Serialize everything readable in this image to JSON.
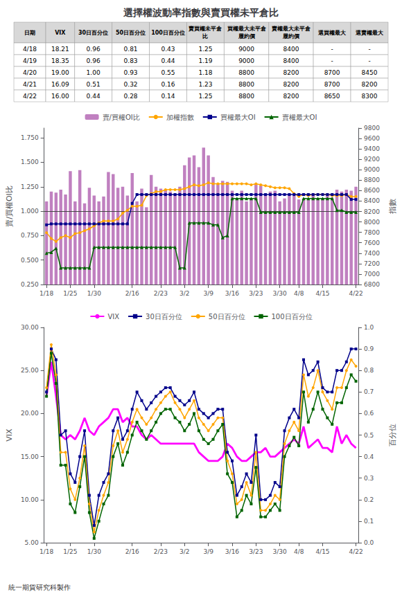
{
  "chart_data": [
    {
      "type": "table",
      "title": "選擇權波動率指數與賣買權未平倉比",
      "columns": [
        "日期",
        "VIX",
        "30日百分位",
        "50日百分位",
        "100日百分位",
        "賣買權未平倉比",
        "買權最大未平倉履約價",
        "賣權最大未平倉履約價",
        "選買權最大",
        "選賣權最大"
      ],
      "rows": [
        [
          "4/18",
          "18.21",
          "0.96",
          "0.81",
          "0.43",
          "1.25",
          "9000",
          "8400",
          "-",
          "-"
        ],
        [
          "4/19",
          "18.35",
          "0.96",
          "0.83",
          "0.44",
          "1.19",
          "9000",
          "8400",
          "-",
          "-"
        ],
        [
          "4/20",
          "19.00",
          "1.00",
          "0.93",
          "0.55",
          "1.18",
          "8800",
          "8200",
          "8700",
          "8450"
        ],
        [
          "4/21",
          "16.09",
          "0.51",
          "0.32",
          "0.16",
          "1.23",
          "8800",
          "8200",
          "8700",
          "8200"
        ],
        [
          "4/22",
          "16.00",
          "0.44",
          "0.28",
          "0.14",
          "1.25",
          "8800",
          "8200",
          "8650",
          "8300"
        ]
      ]
    },
    {
      "type": "bar",
      "categories": [
        "1/18",
        null,
        null,
        null,
        null,
        "1/25",
        null,
        null,
        null,
        null,
        "1/30",
        null,
        null,
        null,
        null,
        null,
        null,
        null,
        "2/16",
        null,
        null,
        null,
        null,
        null,
        "2/23",
        null,
        null,
        null,
        null,
        "3/2",
        null,
        null,
        null,
        null,
        "3/9",
        null,
        null,
        null,
        null,
        "3/16",
        null,
        null,
        null,
        null,
        "3/23",
        null,
        null,
        null,
        null,
        "3/30",
        null,
        null,
        null,
        "4/8",
        null,
        null,
        null,
        null,
        "4/15",
        null,
        null,
        null,
        null,
        null,
        null,
        "4/22"
      ],
      "series": [
        {
          "name": "賣/買權OI比",
          "type": "bar",
          "color": "#c080c0",
          "values": [
            1.1,
            1.2,
            1.19,
            1.22,
            1.17,
            1.41,
            1.1,
            1.42,
            1.08,
            1.24,
            1.16,
            1.1,
            1.15,
            1.4,
            1.38,
            1.24,
            1.25,
            1.16,
            1.39,
            1.1,
            1.23,
            1.04,
            1.37,
            1.25,
            1.23,
            1.22,
            1.2,
            1.18,
            1.25,
            1.47,
            1.55,
            1.57,
            1.45,
            1.65,
            1.57,
            1.35,
            1.28,
            1.31,
            1.3,
            1.21,
            1.13,
            1.21,
            1.1,
            1.13,
            1.28,
            1.26,
            1.18,
            1.2,
            1.21,
            1.1,
            1.13,
            1.18,
            1.16,
            1.12,
            1.13,
            1.12,
            1.17,
            1.13,
            1.13,
            1.18,
            1.14,
            1.22,
            1.2,
            1.22,
            1.21,
            1.25
          ]
        },
        {
          "name": "加權指數",
          "type": "line",
          "color": "#ffa500",
          "marker": "circle",
          "values": [
            0.78,
            0.72,
            0.69,
            0.73,
            0.75,
            0.73,
            0.77,
            0.78,
            0.8,
            0.82,
            0.85,
            0.88,
            0.9,
            0.9,
            0.9,
            0.92,
            0.98,
            1.01,
            1.05,
            1.05,
            1.06,
            1.16,
            1.18,
            1.2,
            1.2,
            1.22,
            1.22,
            1.22,
            1.22,
            1.23,
            1.25,
            1.27,
            1.26,
            1.27,
            1.29,
            1.28,
            1.28,
            1.28,
            1.28,
            1.28,
            1.28,
            1.28,
            1.28,
            1.27,
            1.28,
            1.27,
            1.26,
            1.25,
            1.24,
            1.24,
            1.24,
            1.23,
            1.18,
            1.15,
            1.17,
            1.16,
            1.17,
            1.17,
            1.17,
            1.17,
            1.16,
            1.16,
            1.16,
            1.17,
            1.15,
            1.15
          ]
        },
        {
          "name": "買權最大OI",
          "type": "line",
          "color": "#00008b",
          "marker": "square",
          "values": [
            0.86,
            0.87,
            0.87,
            0.87,
            0.87,
            0.87,
            0.87,
            0.87,
            0.87,
            0.87,
            0.87,
            0.87,
            0.87,
            0.87,
            0.87,
            0.87,
            0.87,
            0.87,
            1.08,
            1.17,
            1.17,
            1.17,
            1.17,
            1.17,
            1.17,
            1.17,
            1.17,
            1.17,
            1.17,
            1.17,
            1.17,
            1.17,
            1.17,
            1.17,
            1.17,
            1.17,
            1.17,
            1.17,
            1.17,
            1.17,
            1.17,
            1.17,
            1.17,
            1.17,
            1.17,
            1.17,
            1.17,
            1.17,
            1.17,
            1.17,
            1.17,
            1.17,
            1.17,
            1.17,
            1.17,
            1.17,
            1.17,
            1.17,
            1.17,
            1.17,
            1.17,
            1.17,
            1.17,
            1.17,
            1.12,
            1.12
          ]
        },
        {
          "name": "賣權最大OI",
          "type": "line",
          "color": "#006400",
          "marker": "triangle",
          "values": [
            0.57,
            0.58,
            0.62,
            0.42,
            0.42,
            0.42,
            0.42,
            0.42,
            0.42,
            0.42,
            0.63,
            0.63,
            0.63,
            0.63,
            0.63,
            0.63,
            0.63,
            0.63,
            0.63,
            0.63,
            0.63,
            0.63,
            0.63,
            0.63,
            0.63,
            0.63,
            0.63,
            0.63,
            0.42,
            0.42,
            0.88,
            0.88,
            0.88,
            0.88,
            0.88,
            0.86,
            0.86,
            0.73,
            0.75,
            1.13,
            1.13,
            1.13,
            1.13,
            1.13,
            1.13,
            0.99,
            0.99,
            0.99,
            0.99,
            0.99,
            0.99,
            0.99,
            0.99,
            0.99,
            1.13,
            1.13,
            1.13,
            1.13,
            1.13,
            1.13,
            1.13,
            1.01,
            1.01,
            0.99,
            0.99,
            0.99
          ]
        }
      ],
      "ylabel": "賣/買權OI比",
      "y2label": "指數",
      "ylim": [
        0.25,
        1.85
      ],
      "yticks": [
        {
          "value": 0.25,
          "label": "0.250"
        },
        {
          "value": 0.5,
          "label": "0.500"
        },
        {
          "value": 0.75,
          "label": "0.750"
        },
        {
          "value": 1.0,
          "label": "1.000"
        },
        {
          "value": 1.25,
          "label": "1.250"
        },
        {
          "value": 1.5,
          "label": "1.500"
        },
        {
          "value": 1.75,
          "label": "1.750"
        }
      ],
      "y2lim": [
        6800,
        9800
      ],
      "y2ticks": [
        6800,
        7000,
        7200,
        7400,
        7600,
        7800,
        8000,
        8200,
        8400,
        8600,
        8800,
        9000,
        9200,
        9400,
        9600,
        9800
      ],
      "hline": 1.0,
      "legend": "top",
      "grid": false
    },
    {
      "type": "line",
      "categories": [
        "1/18",
        null,
        null,
        null,
        null,
        "1/25",
        null,
        null,
        null,
        null,
        "1/30",
        null,
        null,
        null,
        null,
        null,
        null,
        null,
        "2/16",
        null,
        null,
        null,
        null,
        null,
        "2/23",
        null,
        null,
        null,
        null,
        "3/2",
        null,
        null,
        null,
        null,
        "3/9",
        null,
        null,
        null,
        null,
        "3/16",
        null,
        null,
        null,
        null,
        "3/23",
        null,
        null,
        null,
        null,
        "3/30",
        null,
        null,
        null,
        "4/8",
        null,
        null,
        null,
        null,
        "4/15",
        null,
        null,
        null,
        null,
        null,
        null,
        "4/22"
      ],
      "series": [
        {
          "name": "VIX",
          "color": "#ff00ff",
          "values": [
            22.0,
            26.0,
            22.0,
            17.5,
            17.0,
            17.5,
            17.0,
            18.0,
            19.5,
            18.0,
            17.5,
            18.5,
            19.0,
            19.5,
            20.5,
            20.5,
            19.0,
            19.5,
            18.5,
            18.5,
            17.5,
            17.0,
            17.5,
            17.0,
            16.5,
            16.5,
            16.5,
            16.5,
            16.5,
            16.5,
            16.5,
            16.5,
            15.5,
            15.0,
            14.5,
            14.5,
            14.5,
            15.0,
            16.5,
            16.0,
            15.0,
            14.5,
            14.5,
            15.0,
            15.5,
            15.5,
            16.0,
            15.0,
            15.0,
            15.5,
            16.0,
            16.5,
            17.0,
            16.5,
            18.5,
            16.0,
            16.5,
            17.0,
            16.0,
            16.0,
            15.5,
            18.5,
            16.5,
            17.5,
            16.5,
            16.0
          ]
        },
        {
          "name": "30日百分位",
          "color": "#00008b",
          "marker": "square",
          "axis": "y2",
          "values": [
            0.7,
            0.9,
            0.85,
            0.5,
            0.52,
            0.32,
            0.28,
            0.4,
            0.52,
            0.22,
            0.08,
            0.22,
            0.28,
            0.32,
            0.52,
            0.58,
            0.48,
            0.52,
            0.62,
            0.7,
            0.66,
            0.62,
            0.65,
            0.68,
            0.7,
            0.72,
            0.72,
            0.68,
            0.66,
            0.64,
            0.66,
            0.7,
            0.62,
            0.6,
            0.58,
            0.6,
            0.62,
            0.62,
            0.42,
            0.38,
            0.22,
            0.26,
            0.32,
            0.28,
            0.5,
            0.2,
            0.2,
            0.22,
            0.28,
            0.26,
            0.52,
            0.58,
            0.62,
            0.58,
            0.85,
            0.78,
            0.8,
            0.84,
            0.72,
            0.7,
            0.7,
            0.8,
            0.8,
            0.84,
            0.9,
            0.9
          ]
        },
        {
          "name": "50日百分位",
          "color": "#ffa500",
          "marker": "circle",
          "axis": "y2",
          "values": [
            0.72,
            0.92,
            0.78,
            0.42,
            0.42,
            0.25,
            0.2,
            0.3,
            0.45,
            0.18,
            0.05,
            0.15,
            0.22,
            0.28,
            0.45,
            0.52,
            0.42,
            0.48,
            0.56,
            0.62,
            0.58,
            0.55,
            0.58,
            0.62,
            0.65,
            0.68,
            0.7,
            0.65,
            0.62,
            0.58,
            0.62,
            0.66,
            0.58,
            0.55,
            0.52,
            0.55,
            0.58,
            0.58,
            0.38,
            0.32,
            0.18,
            0.2,
            0.28,
            0.22,
            0.42,
            0.15,
            0.15,
            0.18,
            0.22,
            0.2,
            0.46,
            0.52,
            0.56,
            0.52,
            0.78,
            0.68,
            0.72,
            0.8,
            0.7,
            0.66,
            0.62,
            0.72,
            0.72,
            0.8,
            0.85,
            0.82
          ]
        },
        {
          "name": "100日百分位",
          "color": "#006400",
          "marker": "square",
          "axis": "y2",
          "values": [
            0.68,
            0.88,
            0.74,
            0.36,
            0.36,
            0.18,
            0.14,
            0.26,
            0.4,
            0.14,
            0.02,
            0.1,
            0.18,
            0.22,
            0.4,
            0.46,
            0.36,
            0.42,
            0.5,
            0.56,
            0.52,
            0.48,
            0.52,
            0.56,
            0.6,
            0.62,
            0.62,
            0.58,
            0.56,
            0.52,
            0.55,
            0.6,
            0.52,
            0.48,
            0.46,
            0.48,
            0.52,
            0.55,
            0.32,
            0.28,
            0.12,
            0.15,
            0.22,
            0.18,
            0.35,
            0.12,
            0.12,
            0.15,
            0.18,
            0.15,
            0.4,
            0.45,
            0.49,
            0.45,
            0.7,
            0.56,
            0.62,
            0.7,
            0.62,
            0.58,
            0.55,
            0.65,
            0.65,
            0.72,
            0.78,
            0.75
          ]
        }
      ],
      "ylabel": "VIX",
      "y2label": "百分位",
      "ylim": [
        5.0,
        30.0
      ],
      "yticks": [
        {
          "value": 5,
          "label": "5.00"
        },
        {
          "value": 10,
          "label": "10.00"
        },
        {
          "value": 15,
          "label": "15.00"
        },
        {
          "value": 20,
          "label": "20.00"
        },
        {
          "value": 25,
          "label": "25.00"
        },
        {
          "value": 30,
          "label": "30.00"
        }
      ],
      "y2lim": [
        0,
        1.0
      ],
      "y2ticks": [
        {
          "value": 0,
          "label": "0.0"
        },
        0.1,
        0.2,
        0.3,
        0.4,
        0.5,
        0.6,
        0.7,
        0.8,
        0.9,
        {
          "value": 1.0,
          "label": "1.0"
        }
      ],
      "legend": "top",
      "grid": false,
      "annotations": [
        "統一期貨研究科製作"
      ]
    }
  ]
}
